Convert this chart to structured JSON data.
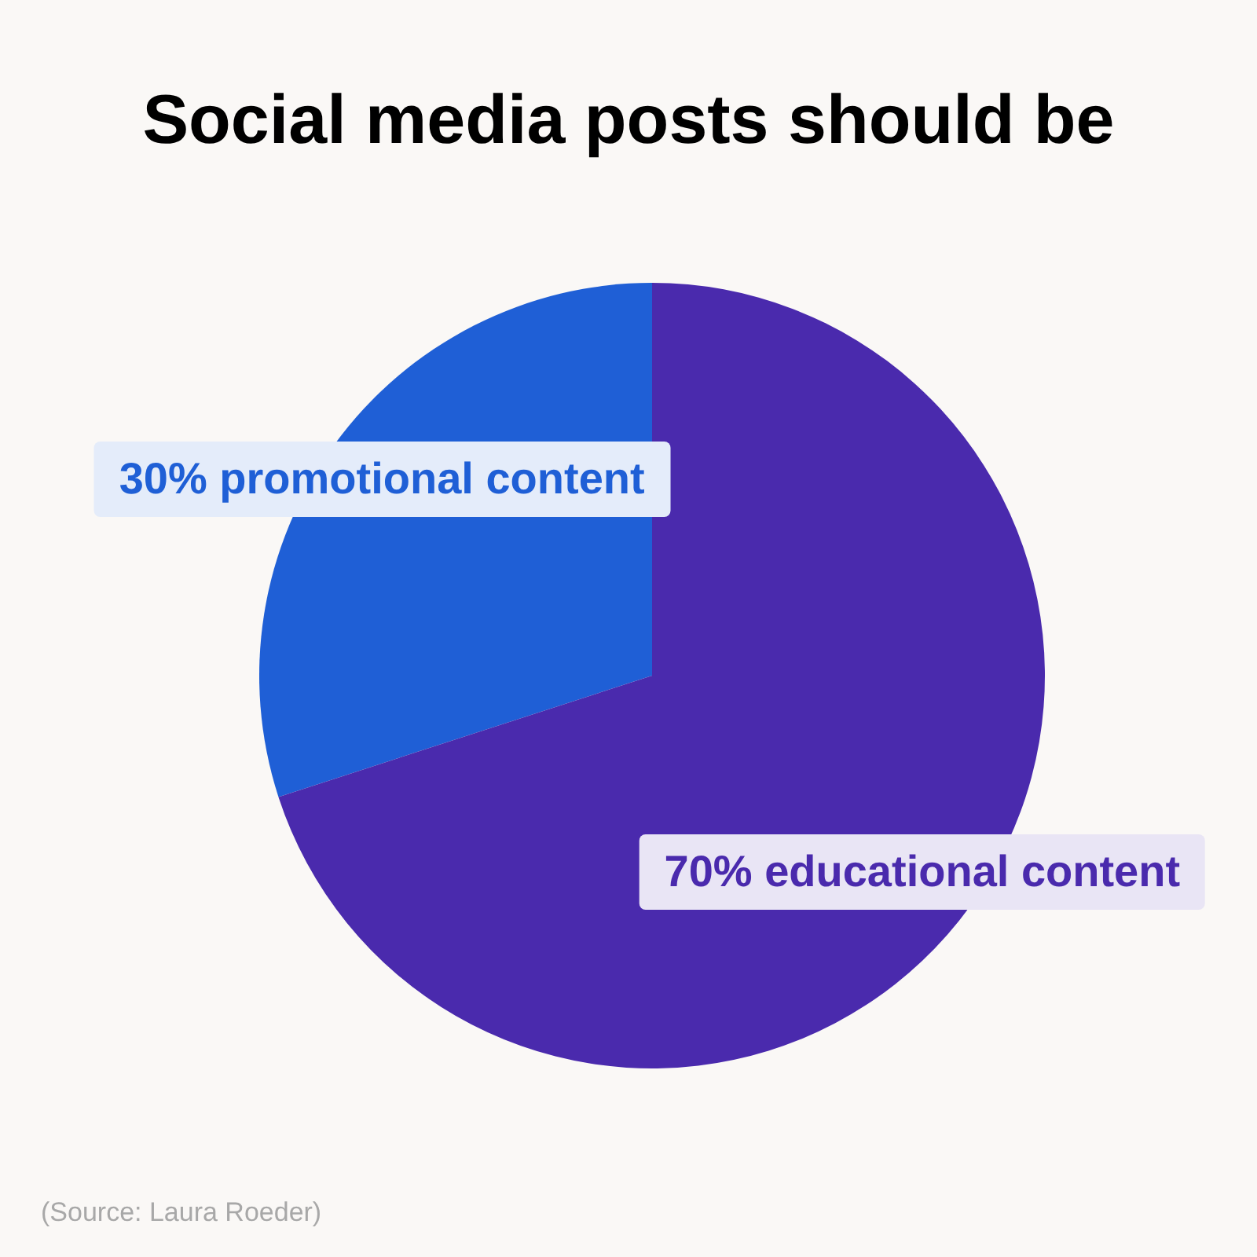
{
  "chart_data": {
    "type": "pie",
    "title": "Social media posts should be",
    "categories": [
      "30% promotional content",
      "70% educational content"
    ],
    "values": [
      30,
      70
    ],
    "colors": [
      "#1f5fd6",
      "#4a2aad"
    ],
    "annotations": [
      "(Source: Laura Roeder)"
    ]
  }
}
